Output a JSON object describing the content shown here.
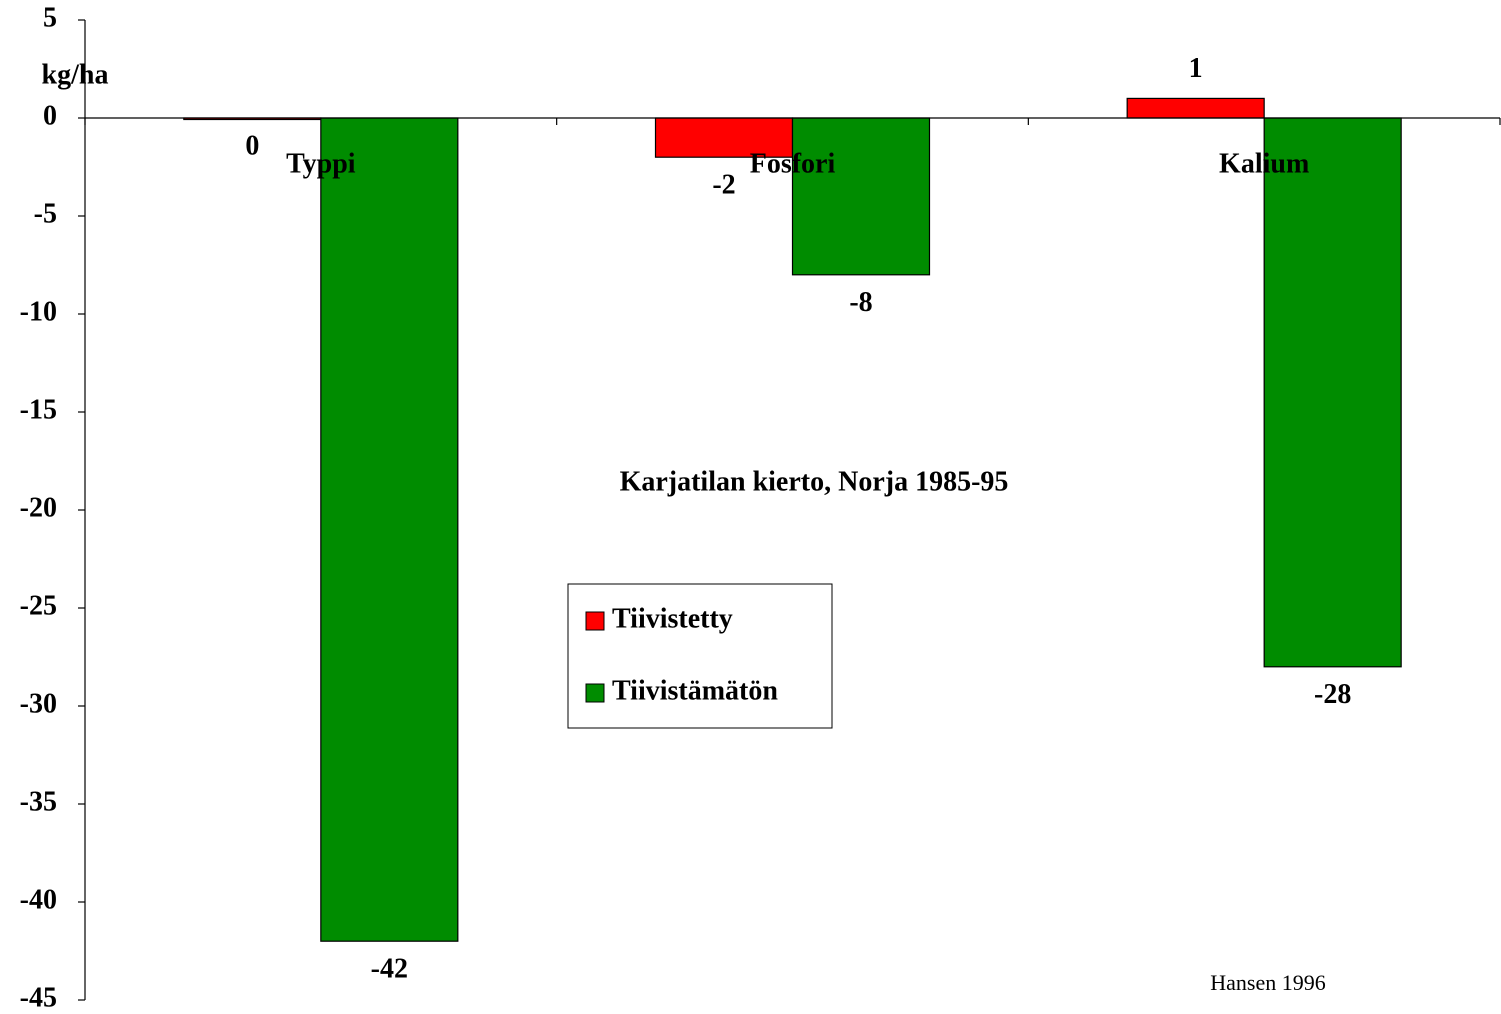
{
  "chart_data": {
    "type": "bar",
    "y_label": "kg/ha",
    "annotation": "Karjatilan kierto, Norja 1985-95",
    "source": "Hansen 1996",
    "categories": [
      "Typpi",
      "Fosfori",
      "Kalium"
    ],
    "series": [
      {
        "name": "Tiivistetty",
        "color": "#ff0000",
        "values": [
          0,
          -2,
          1
        ]
      },
      {
        "name": "Tiivistämätön",
        "color": "#008c00",
        "values": [
          -42,
          -8,
          -28
        ]
      }
    ],
    "ylim": [
      -45,
      5
    ],
    "yticks": [
      -45,
      -40,
      -35,
      -30,
      -25,
      -20,
      -15,
      -10,
      -5,
      0,
      5
    ],
    "grid": false,
    "legend": "center"
  }
}
